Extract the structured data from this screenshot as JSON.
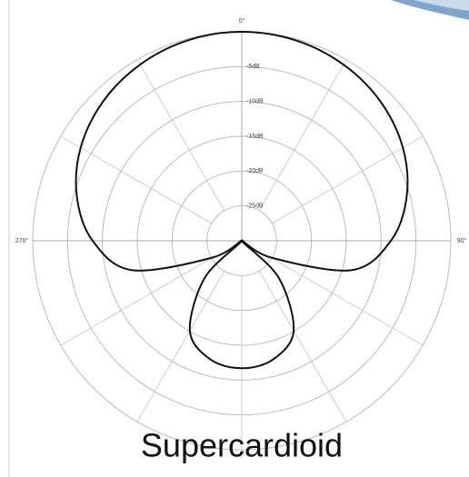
{
  "chart_data": {
    "type": "polar",
    "title": "Supercardioid",
    "theta": [
      0,
      15,
      30,
      45,
      60,
      75,
      90,
      105,
      120,
      127,
      135,
      150,
      165,
      180,
      195,
      210,
      225,
      233,
      240,
      255,
      270,
      285,
      300,
      315,
      330,
      345
    ],
    "values": [
      0,
      -0.2,
      -0.8,
      -1.8,
      -3.3,
      -5.5,
      -8.6,
      -13.7,
      -25.2,
      -30,
      -22.5,
      -15.1,
      -12.4,
      -11.7,
      -12.4,
      -15.1,
      -22.5,
      -30,
      -25.2,
      -13.7,
      -8.6,
      -5.5,
      -3.3,
      -1.8,
      -0.8,
      -0.2
    ],
    "color": "#111111",
    "rlim": [
      -30,
      0
    ],
    "rticks": [
      {
        "value": -5,
        "label": "-5dB"
      },
      {
        "value": -10,
        "label": "-10dB"
      },
      {
        "value": -15,
        "label": "-15dB"
      },
      {
        "value": -20,
        "label": "-20dB"
      },
      {
        "value": -25,
        "label": "-25dB"
      }
    ],
    "thetaticks": [
      {
        "value": 0,
        "label": "0°"
      },
      {
        "value": 90,
        "label": "90°"
      },
      {
        "value": 270,
        "label": "270°"
      }
    ],
    "grid": true
  }
}
